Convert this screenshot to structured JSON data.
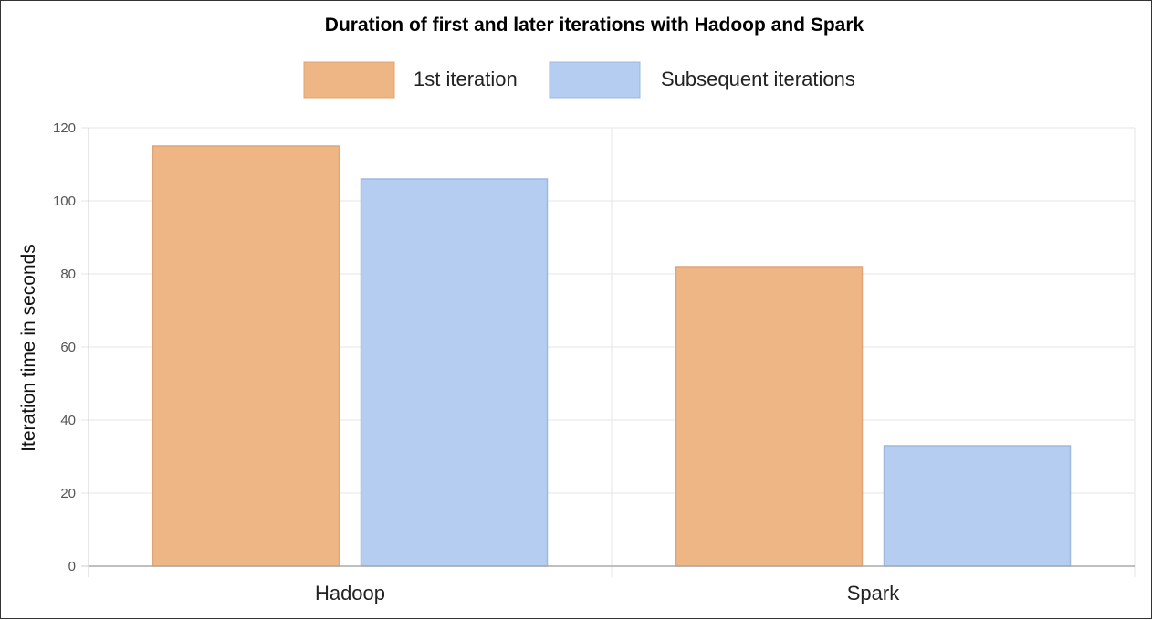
{
  "chart_data": {
    "type": "bar",
    "title": "Duration of first and later iterations with Hadoop and Spark",
    "xlabel": "",
    "ylabel": "Iteration time in seconds",
    "categories": [
      "Hadoop",
      "Spark"
    ],
    "series": [
      {
        "name": "1st iteration",
        "values": [
          115,
          82
        ],
        "color": "#efb685",
        "border": "#e0a477"
      },
      {
        "name": "Subsequent iterations",
        "values": [
          106,
          33
        ],
        "color": "#b4cdf1",
        "border": "#9fb8dd"
      }
    ],
    "ylim": [
      0,
      120
    ],
    "yticks": [
      0,
      20,
      40,
      60,
      80,
      100,
      120
    ],
    "grid": true,
    "legend_position": "top"
  }
}
